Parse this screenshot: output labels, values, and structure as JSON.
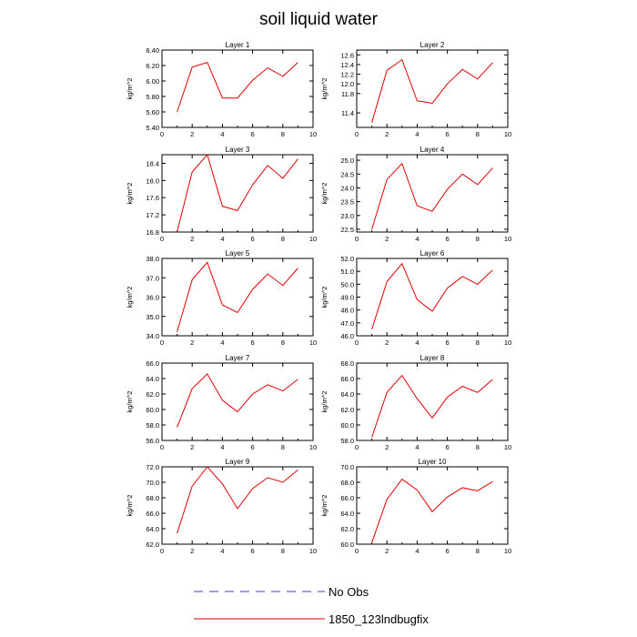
{
  "figure": {
    "title": "soil liquid water"
  },
  "legend": {
    "items": [
      {
        "label": "No Obs",
        "color": "#3b3bd6",
        "style": "dashed"
      },
      {
        "label": "1850_123lndbugfix",
        "color": "#e00000",
        "style": "solid"
      }
    ]
  },
  "chart_data": [
    {
      "type": "line",
      "title": "Layer 1",
      "ylabel": "kg/m^2",
      "xlim": [
        0,
        10
      ],
      "ylim": [
        5.4,
        6.4
      ],
      "xticks": [
        "0",
        "2",
        "4",
        "6",
        "8",
        "10"
      ],
      "yticks": [
        "5.40",
        "5.60",
        "5.80",
        "6.00",
        "6.20",
        "6.40"
      ],
      "series": [
        {
          "color": "#e00000",
          "x": [
            1,
            2,
            3,
            4,
            5,
            6,
            7,
            8,
            9
          ],
          "y": [
            5.6,
            6.18,
            6.24,
            5.78,
            5.78,
            6.01,
            6.17,
            6.06,
            6.24
          ]
        }
      ]
    },
    {
      "type": "line",
      "title": "Layer 2",
      "ylabel": "kg/m^2",
      "xlim": [
        0,
        10
      ],
      "ylim": [
        11.1,
        12.7
      ],
      "xticks": [
        "0",
        "2",
        "4",
        "6",
        "8",
        "10"
      ],
      "yticks": [
        "11.4",
        "11.8",
        "12.0",
        "12.2",
        "12.4",
        "12.6"
      ],
      "series": [
        {
          "color": "#e00000",
          "x": [
            1,
            2,
            3,
            4,
            5,
            6,
            7,
            8,
            9
          ],
          "y": [
            11.2,
            12.28,
            12.5,
            11.65,
            11.6,
            12.0,
            12.3,
            12.1,
            12.44
          ]
        }
      ]
    },
    {
      "type": "line",
      "title": "Layer 3",
      "ylabel": "kg/m^2",
      "xlim": [
        0,
        10
      ],
      "ylim": [
        16.8,
        18.6
      ],
      "xticks": [
        "0",
        "2",
        "4",
        "6",
        "8",
        "10"
      ],
      "yticks": [
        "16.8",
        "17.2",
        "17.6",
        "18.0",
        "18.4"
      ],
      "series": [
        {
          "color": "#e00000",
          "x": [
            1,
            2,
            3,
            4,
            5,
            6,
            7,
            8,
            9
          ],
          "y": [
            16.8,
            18.2,
            18.6,
            17.4,
            17.3,
            17.9,
            18.35,
            18.05,
            18.5
          ]
        }
      ]
    },
    {
      "type": "line",
      "title": "Layer 4",
      "ylabel": "kg/m^2",
      "xlim": [
        0,
        10
      ],
      "ylim": [
        22.4,
        25.2
      ],
      "xticks": [
        "0",
        "2",
        "4",
        "6",
        "8",
        "10"
      ],
      "yticks": [
        "22.5",
        "23.0",
        "23.5",
        "24.0",
        "24.5",
        "25.0"
      ],
      "series": [
        {
          "color": "#e00000",
          "x": [
            1,
            2,
            3,
            4,
            5,
            6,
            7,
            8,
            9
          ],
          "y": [
            22.5,
            24.3,
            24.88,
            23.35,
            23.15,
            23.95,
            24.5,
            24.12,
            24.72
          ]
        }
      ]
    },
    {
      "type": "line",
      "title": "Layer 5",
      "ylabel": "kg/m^2",
      "xlim": [
        0,
        10
      ],
      "ylim": [
        34.0,
        38.0
      ],
      "xticks": [
        "0",
        "2",
        "4",
        "6",
        "8",
        "10"
      ],
      "yticks": [
        "34.0",
        "35.0",
        "36.0",
        "37.0",
        "38.0"
      ],
      "series": [
        {
          "color": "#e00000",
          "x": [
            1,
            2,
            3,
            4,
            5,
            6,
            7,
            8,
            9
          ],
          "y": [
            34.2,
            36.9,
            37.8,
            35.6,
            35.2,
            36.4,
            37.2,
            36.6,
            37.5
          ]
        }
      ]
    },
    {
      "type": "line",
      "title": "Layer 6",
      "ylabel": "kg/m^2",
      "xlim": [
        0,
        10
      ],
      "ylim": [
        46.0,
        52.0
      ],
      "xticks": [
        "0",
        "2",
        "4",
        "6",
        "8",
        "10"
      ],
      "yticks": [
        "46.0",
        "47.0",
        "48.0",
        "49.0",
        "50.0",
        "51.0",
        "52.0"
      ],
      "series": [
        {
          "color": "#e00000",
          "x": [
            1,
            2,
            3,
            4,
            5,
            6,
            7,
            8,
            9
          ],
          "y": [
            46.5,
            50.2,
            51.6,
            48.8,
            47.9,
            49.7,
            50.6,
            50.0,
            51.1
          ]
        }
      ]
    },
    {
      "type": "line",
      "title": "Layer 7",
      "ylabel": "kg/m^2",
      "xlim": [
        0,
        10
      ],
      "ylim": [
        56.0,
        66.0
      ],
      "xticks": [
        "0",
        "2",
        "4",
        "6",
        "8",
        "10"
      ],
      "yticks": [
        "56.0",
        "58.0",
        "60.0",
        "62.0",
        "64.0",
        "66.0"
      ],
      "series": [
        {
          "color": "#e00000",
          "x": [
            1,
            2,
            3,
            4,
            5,
            6,
            7,
            8,
            9
          ],
          "y": [
            57.7,
            62.7,
            64.6,
            61.2,
            59.7,
            62.0,
            63.2,
            62.4,
            63.9
          ]
        }
      ]
    },
    {
      "type": "line",
      "title": "Layer 8",
      "ylabel": "kg/m^2",
      "xlim": [
        0,
        10
      ],
      "ylim": [
        58.0,
        68.0
      ],
      "xticks": [
        "0",
        "2",
        "4",
        "6",
        "8",
        "10"
      ],
      "yticks": [
        "58.0",
        "60.0",
        "62.0",
        "64.0",
        "66.0",
        "68.0"
      ],
      "series": [
        {
          "color": "#e00000",
          "x": [
            1,
            2,
            3,
            4,
            5,
            6,
            7,
            8,
            9
          ],
          "y": [
            58.4,
            64.2,
            66.4,
            63.4,
            60.9,
            63.6,
            65.0,
            64.2,
            65.9
          ]
        }
      ]
    },
    {
      "type": "line",
      "title": "Layer 9",
      "ylabel": "kg/m^2",
      "xlim": [
        0,
        10
      ],
      "ylim": [
        62.0,
        72.0
      ],
      "xticks": [
        "0",
        "2",
        "4",
        "6",
        "8",
        "10"
      ],
      "yticks": [
        "62.0",
        "64.0",
        "66.0",
        "68.0",
        "70.0",
        "72.0"
      ],
      "series": [
        {
          "color": "#e00000",
          "x": [
            1,
            2,
            3,
            4,
            5,
            6,
            7,
            8,
            9
          ],
          "y": [
            63.4,
            69.5,
            72.0,
            69.8,
            66.6,
            69.2,
            70.6,
            70.0,
            71.6
          ]
        }
      ]
    },
    {
      "type": "line",
      "title": "Layer 10",
      "ylabel": "kg/m^2",
      "xlim": [
        0,
        10
      ],
      "ylim": [
        60.0,
        70.0
      ],
      "xticks": [
        "0",
        "2",
        "4",
        "6",
        "8",
        "10"
      ],
      "yticks": [
        "60.0",
        "62.0",
        "64.0",
        "66.0",
        "68.0",
        "70.0"
      ],
      "series": [
        {
          "color": "#e00000",
          "x": [
            1,
            2,
            3,
            4,
            5,
            6,
            7,
            8,
            9
          ],
          "y": [
            60.2,
            65.8,
            68.4,
            67.0,
            64.2,
            66.1,
            67.3,
            66.9,
            68.1
          ]
        }
      ]
    }
  ]
}
